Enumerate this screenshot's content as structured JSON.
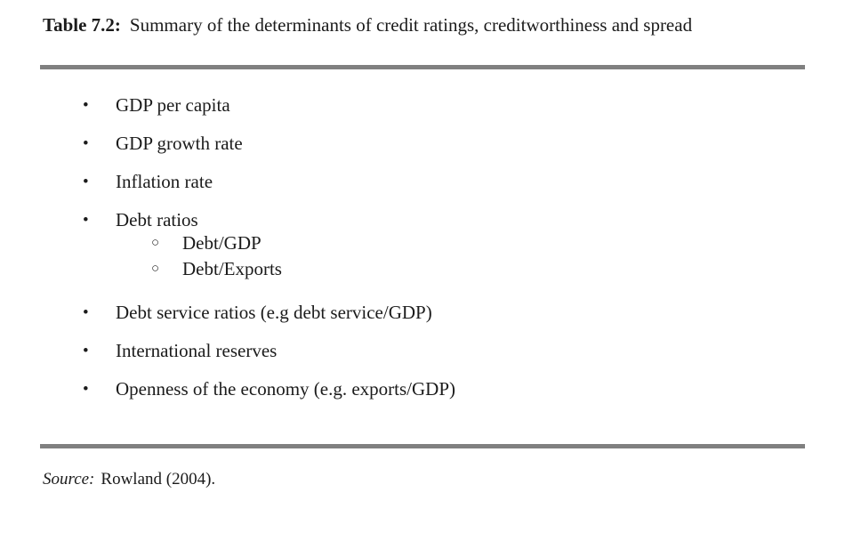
{
  "title": {
    "label": "Table 7.2:",
    "text": "Summary of the determinants of credit ratings, creditworthiness and spread"
  },
  "list": {
    "items": [
      {
        "label": "GDP per capita"
      },
      {
        "label": "GDP growth rate"
      },
      {
        "label": "Inflation rate"
      },
      {
        "label": "Debt ratios",
        "children": [
          "Debt/GDP",
          "Debt/Exports"
        ]
      },
      {
        "label": "Debt service ratios (e.g debt service/GDP)"
      },
      {
        "label": "International reserves"
      },
      {
        "label": "Openness of the economy (e.g. exports/GDP)"
      }
    ],
    "bullet_glyph": "•",
    "sub_bullet_glyph": "○"
  },
  "source": {
    "label": "Source:",
    "text": "Rowland (2004)."
  },
  "colors": {
    "rule": "#808080",
    "text": "#1b1b1b",
    "background": "#ffffff"
  }
}
